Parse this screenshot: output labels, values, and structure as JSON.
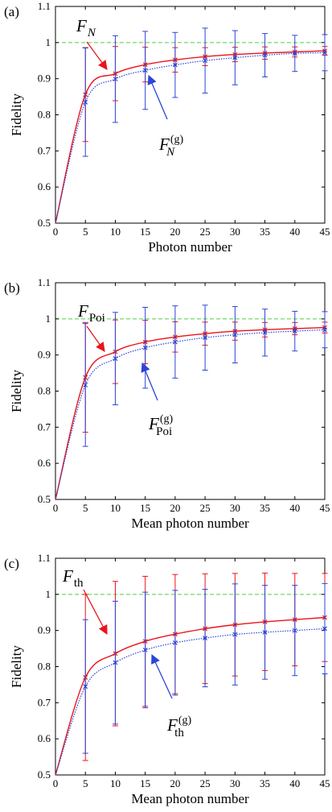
{
  "colors": {
    "red": "#e8141c",
    "blue": "#2b45d6",
    "green": "#4cd141",
    "axis": "#000000"
  },
  "chart_data": [
    {
      "type": "line",
      "panel_label": "(a)",
      "xlabel": "Photon number",
      "ylabel": "Fidelity",
      "xlim": [
        0,
        45
      ],
      "ylim": [
        0.5,
        1.1
      ],
      "xticks": [
        "0",
        "5",
        "10",
        "15",
        "20",
        "25",
        "30",
        "35",
        "40",
        "45"
      ],
      "yticks": [
        "0.5",
        "0.6",
        "0.7",
        "0.8",
        "0.9",
        "1",
        "1.1"
      ],
      "reference_line": 1,
      "annotations": [
        {
          "series": 0,
          "main": "F",
          "sub": "N",
          "sub_italic": true,
          "sup": ""
        },
        {
          "series": 1,
          "main": "F",
          "sub": "N",
          "sub_italic": true,
          "sup": "(g)"
        }
      ],
      "series": [
        {
          "color": "red",
          "style": "solid",
          "marker": "x",
          "x": [
            5,
            10,
            15,
            20,
            25,
            30,
            35,
            40,
            45
          ],
          "y": [
            0.856,
            0.914,
            0.939,
            0.952,
            0.961,
            0.967,
            0.971,
            0.974,
            0.977
          ],
          "err": [
            0.13,
            0.075,
            0.048,
            0.034,
            0.025,
            0.02,
            0.017,
            0.014,
            0.012
          ]
        },
        {
          "color": "blue",
          "style": "dotted",
          "marker": "x",
          "x": [
            5,
            10,
            15,
            20,
            25,
            30,
            35,
            40,
            45
          ],
          "y": [
            0.835,
            0.899,
            0.923,
            0.938,
            0.95,
            0.958,
            0.965,
            0.97,
            0.972
          ],
          "err": [
            0.15,
            0.12,
            0.108,
            0.09,
            0.09,
            0.075,
            0.06,
            0.05,
            0.05
          ]
        }
      ]
    },
    {
      "type": "line",
      "panel_label": "(b)",
      "xlabel": "Mean photon number",
      "ylabel": "Fidelity",
      "xlim": [
        0,
        45
      ],
      "ylim": [
        0.5,
        1.1
      ],
      "xticks": [
        "0",
        "5",
        "10",
        "15",
        "20",
        "25",
        "30",
        "35",
        "40",
        "45"
      ],
      "yticks": [
        "0.5",
        "0.6",
        "0.7",
        "0.8",
        "0.9",
        "1",
        "1.1"
      ],
      "reference_line": 1,
      "annotations": [
        {
          "series": 0,
          "main": "F",
          "sub": "Poi",
          "sub_italic": false,
          "sup": ""
        },
        {
          "series": 1,
          "main": "F",
          "sub": "Poi",
          "sub_italic": false,
          "sup": "(g)"
        }
      ],
      "series": [
        {
          "color": "red",
          "style": "solid",
          "marker": "x",
          "x": [
            5,
            10,
            15,
            20,
            25,
            30,
            35,
            40,
            45
          ],
          "y": [
            0.838,
            0.909,
            0.936,
            0.95,
            0.959,
            0.966,
            0.97,
            0.973,
            0.976
          ],
          "err": [
            0.152,
            0.088,
            0.06,
            0.042,
            0.032,
            0.025,
            0.02,
            0.017,
            0.015
          ]
        },
        {
          "color": "blue",
          "style": "dotted",
          "marker": "x",
          "x": [
            5,
            10,
            15,
            20,
            25,
            30,
            35,
            40,
            45
          ],
          "y": [
            0.817,
            0.89,
            0.92,
            0.936,
            0.948,
            0.956,
            0.962,
            0.966,
            0.97
          ],
          "err": [
            0.17,
            0.128,
            0.112,
            0.1,
            0.09,
            0.078,
            0.065,
            0.055,
            0.05
          ]
        }
      ]
    },
    {
      "type": "line",
      "panel_label": "(c)",
      "xlabel": "Mean photon number",
      "ylabel": "Fidelity",
      "xlim": [
        0,
        45
      ],
      "ylim": [
        0.5,
        1.1
      ],
      "xticks": [
        "0",
        "5",
        "10",
        "15",
        "20",
        "25",
        "30",
        "35",
        "40",
        "45"
      ],
      "yticks": [
        "0.5",
        "0.6",
        "0.7",
        "0.8",
        "0.9",
        "1",
        "1.1"
      ],
      "reference_line": 1,
      "annotations": [
        {
          "series": 0,
          "main": "F",
          "sub": "th",
          "sub_italic": false,
          "sup": ""
        },
        {
          "series": 1,
          "main": "F",
          "sub": "th",
          "sub_italic": false,
          "sup": "(g)"
        }
      ],
      "series": [
        {
          "color": "red",
          "style": "solid",
          "marker": "x",
          "x": [
            5,
            10,
            15,
            20,
            25,
            30,
            35,
            40,
            45
          ],
          "y": [
            0.77,
            0.836,
            0.87,
            0.89,
            0.905,
            0.916,
            0.924,
            0.93,
            0.936
          ],
          "err": [
            0.23,
            0.2,
            0.18,
            0.165,
            0.152,
            0.142,
            0.135,
            0.128,
            0.122
          ]
        },
        {
          "color": "blue",
          "style": "dotted",
          "marker": "x",
          "x": [
            5,
            10,
            15,
            20,
            25,
            30,
            35,
            40,
            45
          ],
          "y": [
            0.745,
            0.811,
            0.846,
            0.866,
            0.879,
            0.889,
            0.895,
            0.9,
            0.905
          ],
          "err": [
            0.185,
            0.17,
            0.16,
            0.145,
            0.135,
            0.14,
            0.13,
            0.125,
            0.125
          ]
        }
      ]
    }
  ]
}
